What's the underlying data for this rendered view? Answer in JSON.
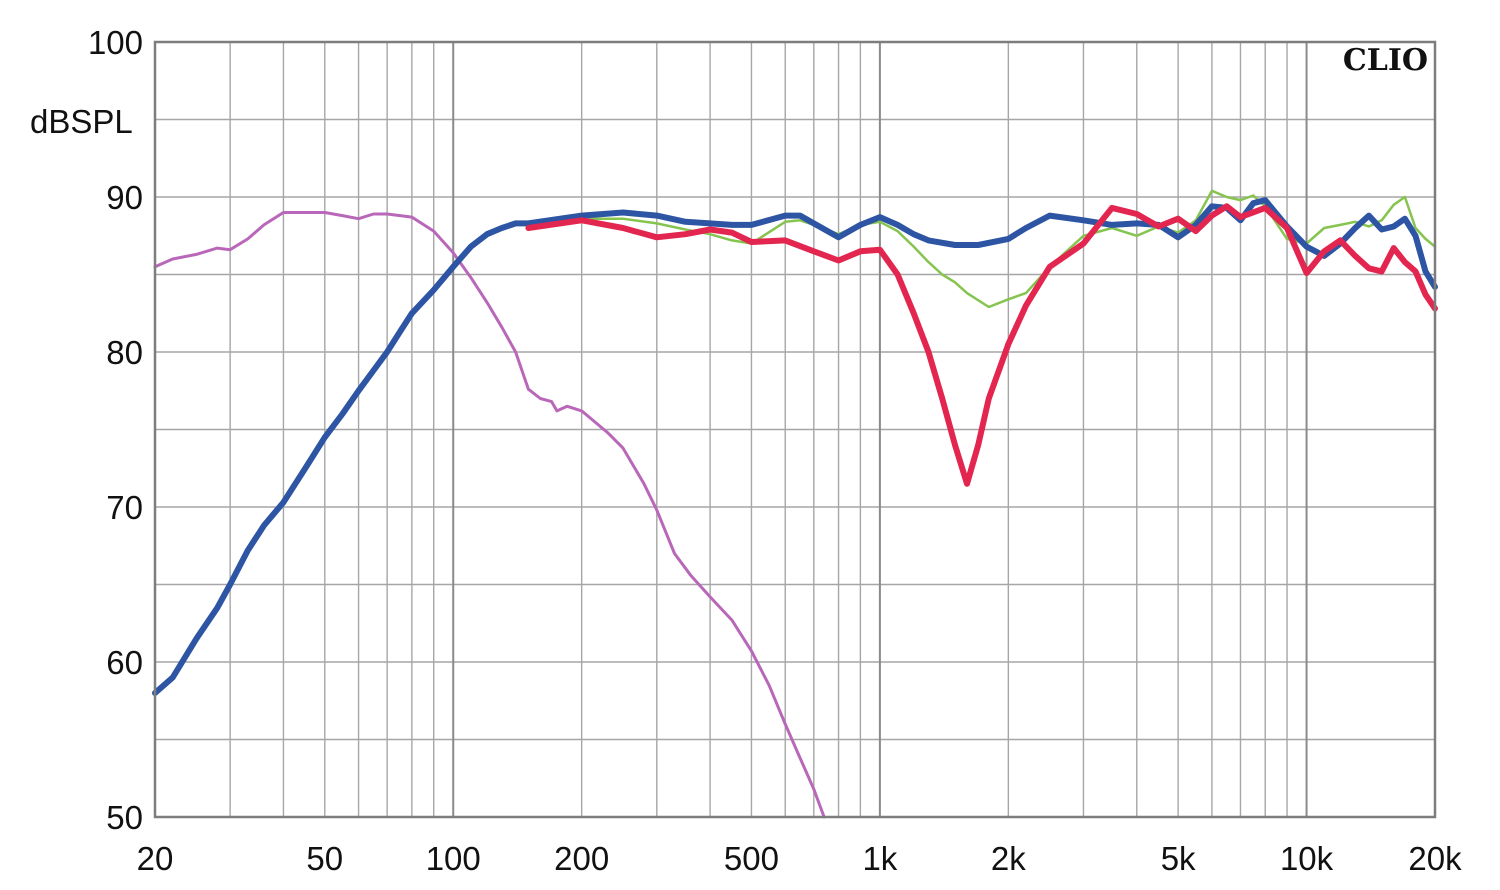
{
  "chart_data": {
    "type": "line",
    "title": "",
    "xlabel": "",
    "ylabel": "dBSPL",
    "brand": "CLIO",
    "x_scale": "log",
    "xlim": [
      20,
      20000
    ],
    "ylim": [
      50,
      100
    ],
    "grid": true,
    "x_ticks": [
      {
        "value": 20,
        "label": "20"
      },
      {
        "value": 50,
        "label": "50"
      },
      {
        "value": 100,
        "label": "100"
      },
      {
        "value": 200,
        "label": "200"
      },
      {
        "value": 500,
        "label": "500"
      },
      {
        "value": 1000,
        "label": "1k"
      },
      {
        "value": 2000,
        "label": "2k"
      },
      {
        "value": 5000,
        "label": "5k"
      },
      {
        "value": 10000,
        "label": "10k"
      },
      {
        "value": 20000,
        "label": "20k"
      }
    ],
    "y_ticks": [
      {
        "value": 50,
        "label": "50"
      },
      {
        "value": 60,
        "label": "60"
      },
      {
        "value": 70,
        "label": "70"
      },
      {
        "value": 80,
        "label": "80"
      },
      {
        "value": 90,
        "label": "90"
      },
      {
        "value": 100,
        "label": "100"
      }
    ],
    "series": [
      {
        "color": "#b968b9",
        "stroke": 3,
        "points": [
          [
            20,
            85.5
          ],
          [
            22,
            86
          ],
          [
            25,
            86.3
          ],
          [
            28,
            86.7
          ],
          [
            30,
            86.6
          ],
          [
            33,
            87.3
          ],
          [
            36,
            88.2
          ],
          [
            40,
            89
          ],
          [
            45,
            89
          ],
          [
            50,
            89
          ],
          [
            55,
            88.8
          ],
          [
            60,
            88.6
          ],
          [
            65,
            88.9
          ],
          [
            70,
            88.9
          ],
          [
            80,
            88.7
          ],
          [
            90,
            87.8
          ],
          [
            100,
            86.4
          ],
          [
            110,
            84.8
          ],
          [
            120,
            83.2
          ],
          [
            130,
            81.6
          ],
          [
            140,
            80
          ],
          [
            150,
            77.6
          ],
          [
            160,
            77
          ],
          [
            170,
            76.8
          ],
          [
            175,
            76.2
          ],
          [
            185,
            76.5
          ],
          [
            200,
            76.2
          ],
          [
            230,
            74.8
          ],
          [
            250,
            73.8
          ],
          [
            280,
            71.5
          ],
          [
            300,
            69.8
          ],
          [
            330,
            67
          ],
          [
            360,
            65.6
          ],
          [
            400,
            64.2
          ],
          [
            450,
            62.7
          ],
          [
            500,
            60.7
          ],
          [
            550,
            58.5
          ],
          [
            600,
            56
          ],
          [
            650,
            53.8
          ],
          [
            700,
            51.8
          ],
          [
            740,
            50
          ]
        ]
      },
      {
        "color": "#86c450",
        "stroke": 2.5,
        "points": [
          [
            150,
            88.2
          ],
          [
            200,
            88.6
          ],
          [
            250,
            88.6
          ],
          [
            300,
            88.3
          ],
          [
            350,
            87.9
          ],
          [
            400,
            87.6
          ],
          [
            450,
            87.2
          ],
          [
            500,
            87
          ],
          [
            600,
            88.4
          ],
          [
            650,
            88.5
          ],
          [
            700,
            88.2
          ],
          [
            800,
            87.6
          ],
          [
            900,
            88.2
          ],
          [
            1000,
            88.4
          ],
          [
            1100,
            87.8
          ],
          [
            1200,
            86.8
          ],
          [
            1300,
            85.8
          ],
          [
            1400,
            85
          ],
          [
            1500,
            84.5
          ],
          [
            1600,
            83.8
          ],
          [
            1800,
            82.9
          ],
          [
            2000,
            83.4
          ],
          [
            2200,
            83.8
          ],
          [
            2500,
            85.5
          ],
          [
            3000,
            87.5
          ],
          [
            3500,
            88
          ],
          [
            4000,
            87.5
          ],
          [
            4500,
            88.1
          ],
          [
            5000,
            87.7
          ],
          [
            5500,
            88.5
          ],
          [
            6000,
            90.4
          ],
          [
            6500,
            90
          ],
          [
            7000,
            89.8
          ],
          [
            7500,
            90.1
          ],
          [
            8000,
            89.4
          ],
          [
            9000,
            87.3
          ],
          [
            10000,
            87
          ],
          [
            11000,
            88
          ],
          [
            12000,
            88.2
          ],
          [
            13000,
            88.4
          ],
          [
            14000,
            88.1
          ],
          [
            15000,
            88.5
          ],
          [
            16000,
            89.5
          ],
          [
            17000,
            90
          ],
          [
            18000,
            88
          ],
          [
            19000,
            87.3
          ],
          [
            20000,
            86.8
          ]
        ]
      },
      {
        "color": "#2d55a4",
        "stroke": 6,
        "points": [
          [
            20,
            58
          ],
          [
            22,
            59
          ],
          [
            25,
            61.5
          ],
          [
            28,
            63.5
          ],
          [
            30,
            65
          ],
          [
            33,
            67.2
          ],
          [
            36,
            68.8
          ],
          [
            40,
            70.3
          ],
          [
            45,
            72.5
          ],
          [
            50,
            74.5
          ],
          [
            55,
            76
          ],
          [
            60,
            77.5
          ],
          [
            65,
            78.8
          ],
          [
            70,
            80
          ],
          [
            75,
            81.3
          ],
          [
            80,
            82.5
          ],
          [
            90,
            84
          ],
          [
            100,
            85.5
          ],
          [
            110,
            86.8
          ],
          [
            120,
            87.6
          ],
          [
            130,
            88
          ],
          [
            140,
            88.3
          ],
          [
            150,
            88.3
          ],
          [
            200,
            88.8
          ],
          [
            250,
            89
          ],
          [
            300,
            88.8
          ],
          [
            350,
            88.4
          ],
          [
            400,
            88.3
          ],
          [
            450,
            88.2
          ],
          [
            500,
            88.2
          ],
          [
            600,
            88.8
          ],
          [
            650,
            88.8
          ],
          [
            700,
            88.3
          ],
          [
            800,
            87.4
          ],
          [
            900,
            88.2
          ],
          [
            1000,
            88.7
          ],
          [
            1100,
            88.2
          ],
          [
            1200,
            87.6
          ],
          [
            1300,
            87.2
          ],
          [
            1500,
            86.9
          ],
          [
            1700,
            86.9
          ],
          [
            2000,
            87.3
          ],
          [
            2200,
            88
          ],
          [
            2500,
            88.8
          ],
          [
            3000,
            88.5
          ],
          [
            3500,
            88.2
          ],
          [
            4000,
            88.3
          ],
          [
            4500,
            88.2
          ],
          [
            5000,
            87.4
          ],
          [
            5500,
            88.2
          ],
          [
            6000,
            89.4
          ],
          [
            6500,
            89.3
          ],
          [
            7000,
            88.5
          ],
          [
            7500,
            89.6
          ],
          [
            8000,
            89.8
          ],
          [
            9000,
            88.1
          ],
          [
            10000,
            86.8
          ],
          [
            11000,
            86.2
          ],
          [
            12000,
            87
          ],
          [
            13000,
            88
          ],
          [
            14000,
            88.8
          ],
          [
            15000,
            87.9
          ],
          [
            16000,
            88.1
          ],
          [
            17000,
            88.6
          ],
          [
            18000,
            87.5
          ],
          [
            19000,
            85.2
          ],
          [
            20000,
            84.2
          ]
        ]
      },
      {
        "color": "#e3264f",
        "stroke": 6,
        "points": [
          [
            150,
            88
          ],
          [
            200,
            88.5
          ],
          [
            250,
            88
          ],
          [
            300,
            87.4
          ],
          [
            350,
            87.6
          ],
          [
            400,
            87.9
          ],
          [
            450,
            87.7
          ],
          [
            500,
            87.1
          ],
          [
            600,
            87.2
          ],
          [
            700,
            86.5
          ],
          [
            800,
            85.9
          ],
          [
            900,
            86.5
          ],
          [
            1000,
            86.6
          ],
          [
            1100,
            85
          ],
          [
            1200,
            82.5
          ],
          [
            1300,
            80
          ],
          [
            1400,
            77
          ],
          [
            1500,
            74
          ],
          [
            1600,
            71.5
          ],
          [
            1700,
            74
          ],
          [
            1800,
            77
          ],
          [
            2000,
            80.5
          ],
          [
            2200,
            83
          ],
          [
            2500,
            85.5
          ],
          [
            3000,
            87
          ],
          [
            3500,
            89.3
          ],
          [
            4000,
            88.9
          ],
          [
            4500,
            88.1
          ],
          [
            5000,
            88.6
          ],
          [
            5500,
            87.8
          ],
          [
            6000,
            88.8
          ],
          [
            6500,
            89.4
          ],
          [
            7000,
            88.7
          ],
          [
            8000,
            89.3
          ],
          [
            9000,
            88
          ],
          [
            10000,
            85.1
          ],
          [
            11000,
            86.5
          ],
          [
            12000,
            87.2
          ],
          [
            13000,
            86.2
          ],
          [
            14000,
            85.4
          ],
          [
            15000,
            85.2
          ],
          [
            16000,
            86.7
          ],
          [
            17000,
            85.8
          ],
          [
            18000,
            85.2
          ],
          [
            19000,
            83.7
          ],
          [
            20000,
            82.8
          ]
        ]
      }
    ]
  }
}
